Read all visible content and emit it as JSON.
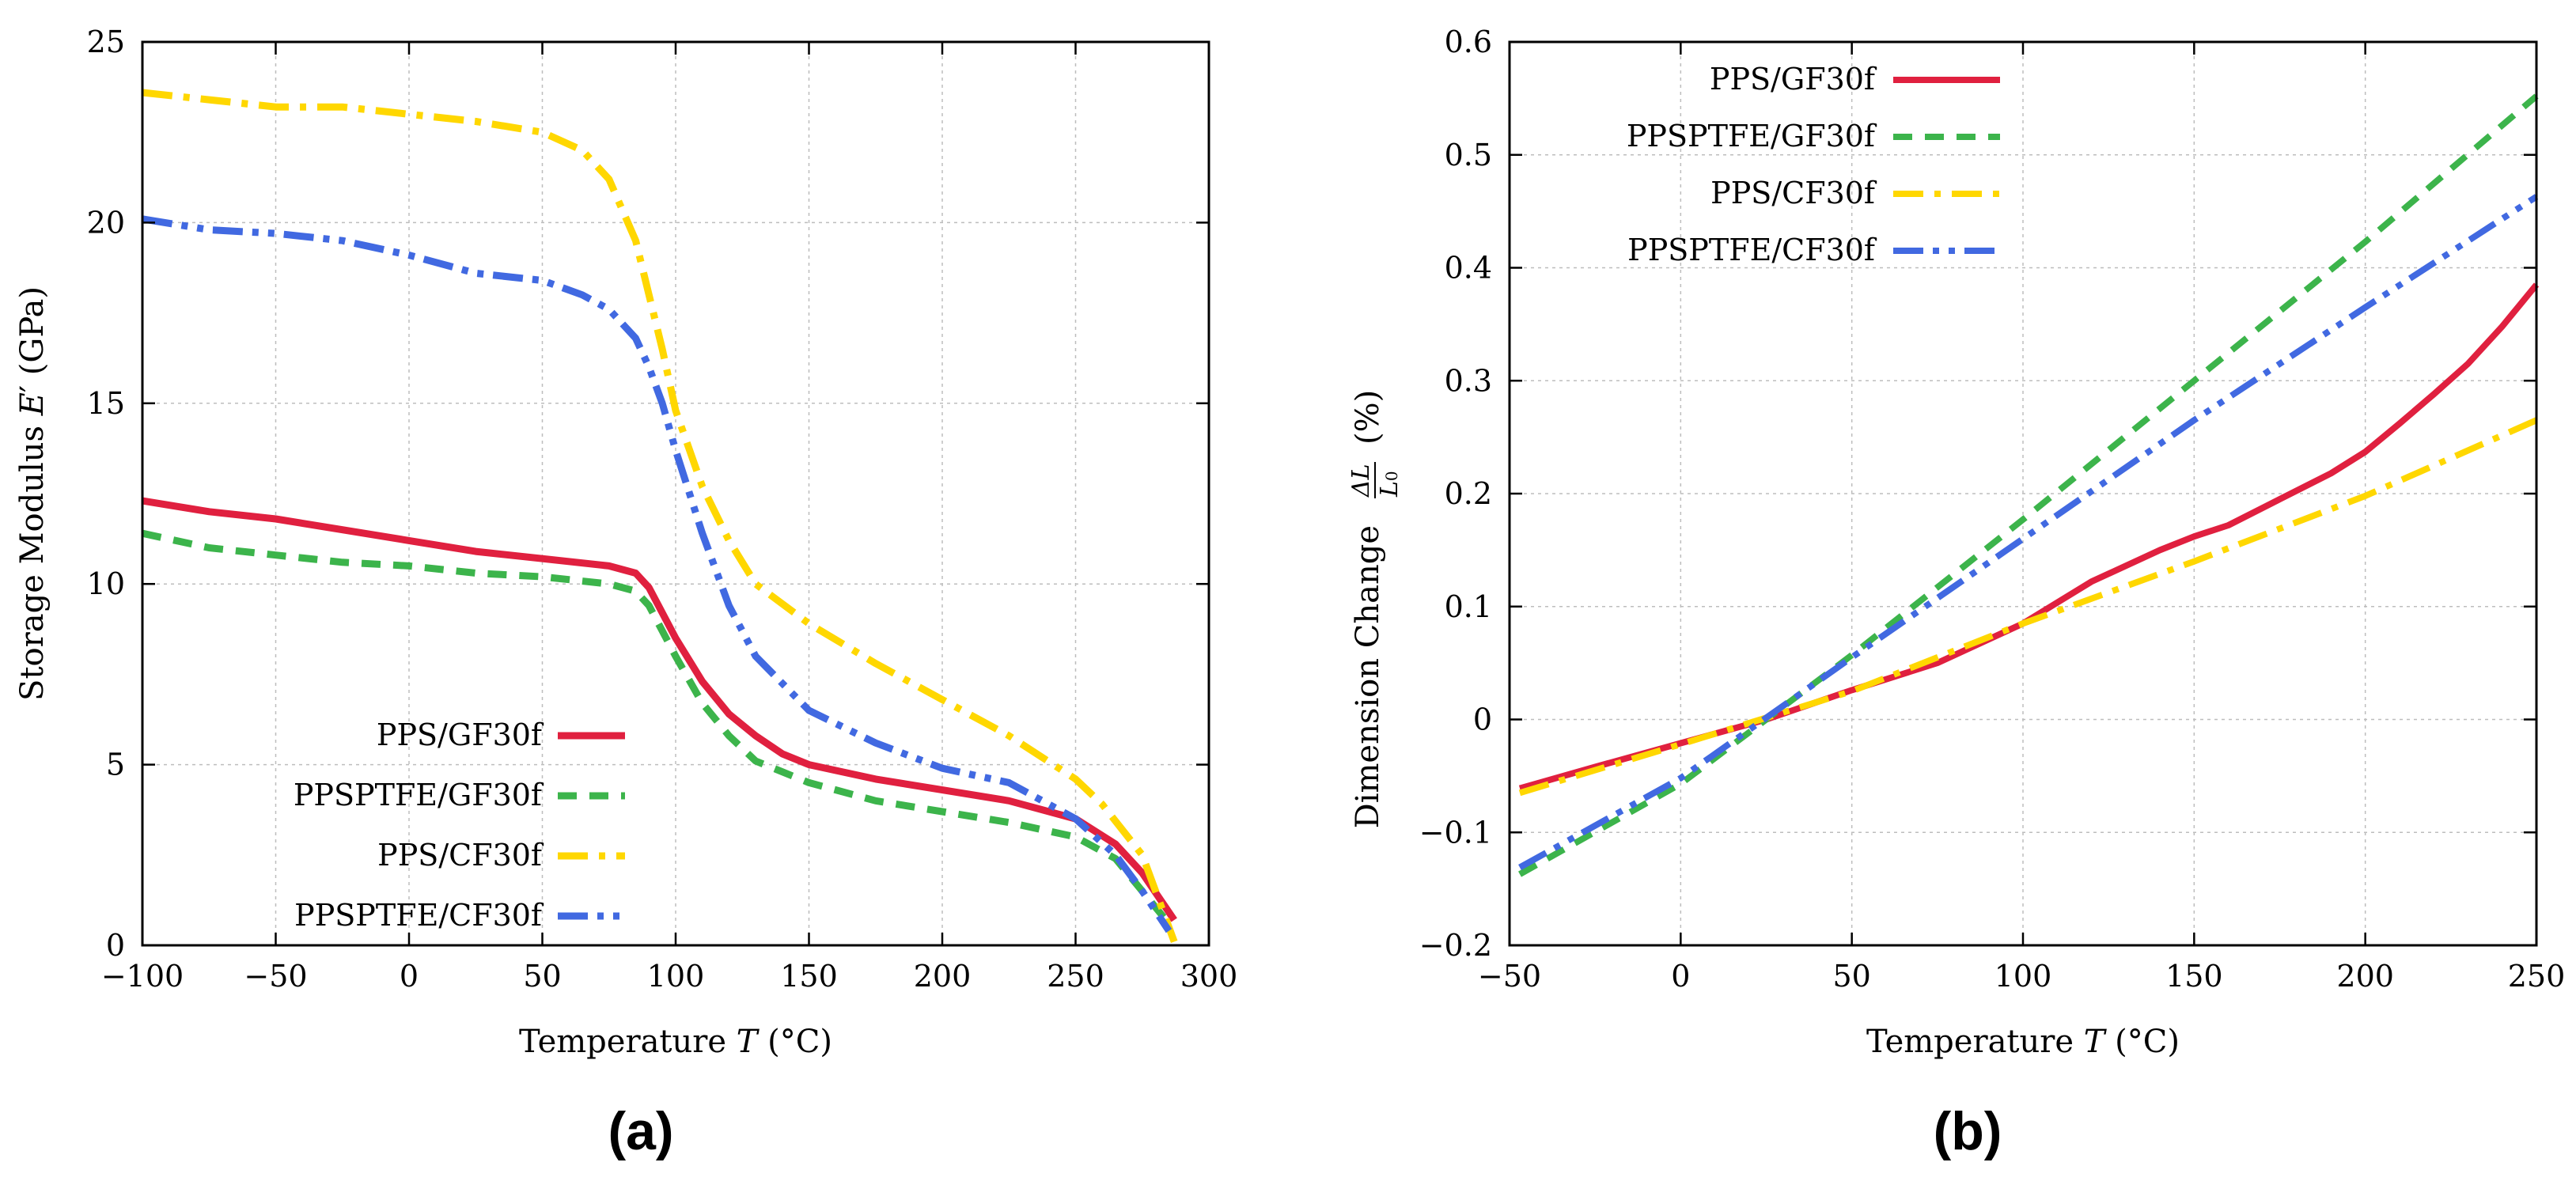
{
  "chart_data": [
    {
      "type": "line",
      "panel": "(a)",
      "xlabel": "Temperature T (°C)",
      "ylabel": "Storage Modulus E′ (GPa)",
      "xlim": [
        -100,
        300
      ],
      "ylim": [
        0,
        25
      ],
      "xticks": [
        -100,
        -50,
        0,
        50,
        100,
        150,
        200,
        250,
        300
      ],
      "xtick_labels": [
        "−100",
        "−50",
        "0",
        "50",
        "100",
        "150",
        "200",
        "250",
        "300"
      ],
      "yticks": [
        0,
        5,
        10,
        15,
        20,
        25
      ],
      "ytick_labels": [
        "0",
        "5",
        "10",
        "15",
        "20",
        "25"
      ],
      "grid": true,
      "legend_position": "bottom-left",
      "series": [
        {
          "name": "PPS/GF30f",
          "color": "#e0203f",
          "style": "solid",
          "x": [
            -100,
            -75,
            -50,
            -25,
            0,
            25,
            50,
            75,
            85,
            90,
            100,
            110,
            120,
            130,
            140,
            150,
            175,
            200,
            225,
            250,
            265,
            275,
            287
          ],
          "y": [
            12.3,
            12.0,
            11.8,
            11.5,
            11.2,
            10.9,
            10.7,
            10.5,
            10.3,
            9.9,
            8.5,
            7.3,
            6.4,
            5.8,
            5.3,
            5.0,
            4.6,
            4.3,
            4.0,
            3.5,
            2.8,
            2.0,
            0.7
          ]
        },
        {
          "name": "PPSPTFE/GF30f",
          "color": "#3cb44b",
          "style": "dashed",
          "x": [
            -100,
            -75,
            -50,
            -25,
            0,
            25,
            50,
            75,
            85,
            90,
            100,
            110,
            120,
            130,
            140,
            150,
            175,
            200,
            225,
            250,
            265,
            275,
            285
          ],
          "y": [
            11.4,
            11.0,
            10.8,
            10.6,
            10.5,
            10.3,
            10.2,
            10.0,
            9.8,
            9.4,
            8.0,
            6.7,
            5.8,
            5.1,
            4.8,
            4.5,
            4.0,
            3.7,
            3.4,
            3.0,
            2.4,
            1.5,
            0.6
          ]
        },
        {
          "name": "PPS/CF30f",
          "color": "#ffd700",
          "style": "dashdot",
          "x": [
            -100,
            -75,
            -50,
            -25,
            0,
            25,
            50,
            65,
            75,
            85,
            90,
            95,
            100,
            110,
            120,
            130,
            150,
            175,
            200,
            225,
            250,
            260,
            275,
            287
          ],
          "y": [
            23.6,
            23.4,
            23.2,
            23.2,
            23.0,
            22.8,
            22.5,
            22.0,
            21.2,
            19.5,
            18.0,
            16.5,
            14.8,
            12.7,
            11.2,
            10.0,
            8.9,
            7.8,
            6.8,
            5.8,
            4.6,
            3.9,
            2.5,
            0.1
          ]
        },
        {
          "name": "PPSPTFE/CF30f",
          "color": "#4169e1",
          "style": "dashdotdot",
          "x": [
            -100,
            -75,
            -50,
            -25,
            0,
            25,
            50,
            65,
            75,
            85,
            90,
            95,
            100,
            110,
            120,
            130,
            150,
            175,
            200,
            225,
            250,
            265,
            275,
            285
          ],
          "y": [
            20.1,
            19.8,
            19.7,
            19.5,
            19.1,
            18.6,
            18.4,
            18.0,
            17.6,
            16.8,
            16.0,
            15.0,
            13.7,
            11.4,
            9.4,
            8.0,
            6.5,
            5.6,
            4.9,
            4.5,
            3.5,
            2.5,
            1.5,
            0.4
          ]
        }
      ]
    },
    {
      "type": "line",
      "panel": "(b)",
      "xlabel": "Temperature T (°C)",
      "ylabel": "Dimension Change ΔL/L0 (%)",
      "xlim": [
        -50,
        250
      ],
      "ylim": [
        -0.2,
        0.6
      ],
      "xticks": [
        -50,
        0,
        50,
        100,
        150,
        200,
        250
      ],
      "xtick_labels": [
        "−50",
        "0",
        "50",
        "100",
        "150",
        "200",
        "250"
      ],
      "yticks": [
        -0.2,
        -0.1,
        0,
        0.1,
        0.2,
        0.3,
        0.4,
        0.5,
        0.6
      ],
      "ytick_labels": [
        "−0.2",
        "−0.1",
        "0",
        "0.1",
        "0.2",
        "0.3",
        "0.4",
        "0.5",
        "0.6"
      ],
      "grid": true,
      "legend_position": "top-left",
      "series": [
        {
          "name": "PPS/GF30f",
          "color": "#e0203f",
          "style": "solid",
          "x": [
            -47,
            -25,
            0,
            25,
            50,
            75,
            100,
            120,
            140,
            150,
            160,
            175,
            190,
            200,
            210,
            220,
            230,
            240,
            250
          ],
          "y": [
            -0.061,
            -0.042,
            -0.021,
            0.0,
            0.026,
            0.05,
            0.085,
            0.122,
            0.15,
            0.162,
            0.172,
            0.195,
            0.218,
            0.237,
            0.262,
            0.288,
            0.315,
            0.348,
            0.385
          ]
        },
        {
          "name": "PPSPTFE/GF30f",
          "color": "#3cb44b",
          "style": "dashed",
          "x": [
            -47,
            0,
            50,
            100,
            150,
            200,
            250
          ],
          "y": [
            -0.137,
            -0.057,
            0.057,
            0.177,
            0.3,
            0.423,
            0.552
          ]
        },
        {
          "name": "PPS/CF30f",
          "color": "#ffd700",
          "style": "dashdot",
          "x": [
            -47,
            0,
            50,
            100,
            150,
            200,
            250
          ],
          "y": [
            -0.065,
            -0.022,
            0.025,
            0.085,
            0.14,
            0.198,
            0.265
          ]
        },
        {
          "name": "PPSPTFE/CF30f",
          "color": "#4169e1",
          "style": "dashdotdot",
          "x": [
            -47,
            0,
            50,
            100,
            150,
            200,
            250
          ],
          "y": [
            -0.131,
            -0.052,
            0.055,
            0.16,
            0.265,
            0.365,
            0.463
          ]
        }
      ]
    }
  ]
}
